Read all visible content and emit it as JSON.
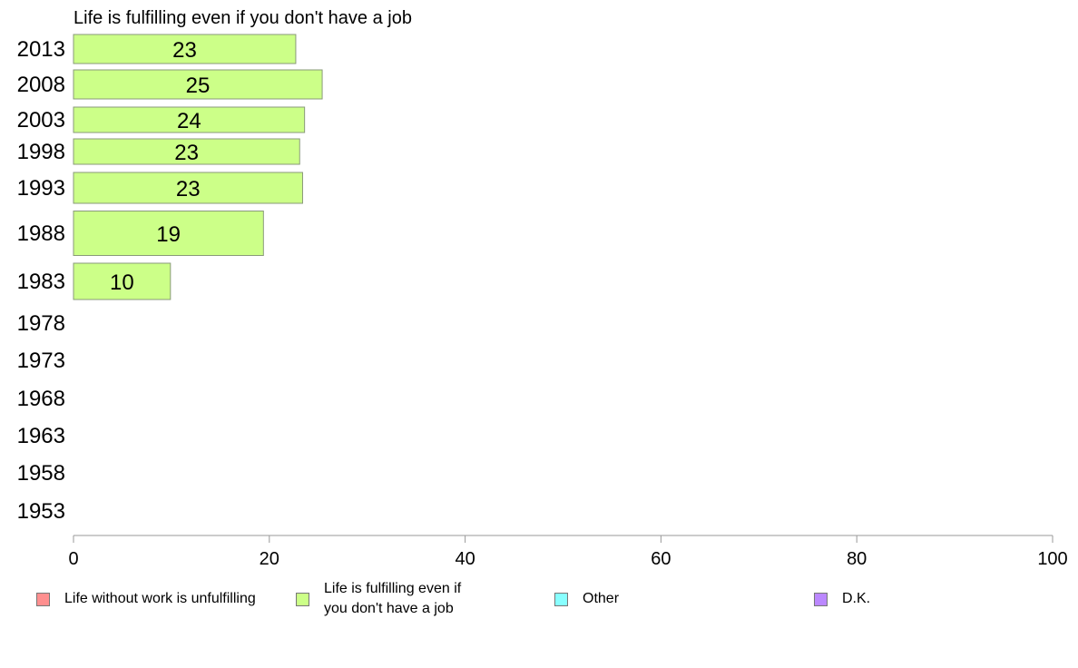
{
  "chart_data": {
    "type": "bar",
    "orientation": "horizontal",
    "title": "Life is fulfilling even if you don't have a job",
    "categories": [
      "2013",
      "2008",
      "2003",
      "1998",
      "1993",
      "1988",
      "1983",
      "1978",
      "1973",
      "1968",
      "1963",
      "1958",
      "1953"
    ],
    "series": [
      {
        "name": "Life is fulfilling even if you don't have a job",
        "values": [
          22.7,
          25.4,
          23.6,
          23.1,
          23.4,
          19.4,
          9.9,
          null,
          null,
          null,
          null,
          null,
          null
        ],
        "labels": [
          "23",
          "25",
          "24",
          "23",
          "23",
          "19",
          "10",
          "",
          "",
          "",
          "",
          "",
          ""
        ],
        "color": "#ccff88"
      }
    ],
    "xlim": [
      0,
      100
    ],
    "xticks": [
      0,
      20,
      40,
      60,
      80,
      100
    ],
    "grid": false,
    "legend_position": "bottom",
    "legend": [
      {
        "label": "Life without work is unfulfilling",
        "color": "#ff8f8f"
      },
      {
        "label": "Life is fulfilling even if\nyou don't have a job",
        "color": "#ccff88"
      },
      {
        "label": "Other",
        "color": "#88ffff"
      },
      {
        "label": "D.K.",
        "color": "#bb88ff"
      }
    ]
  }
}
